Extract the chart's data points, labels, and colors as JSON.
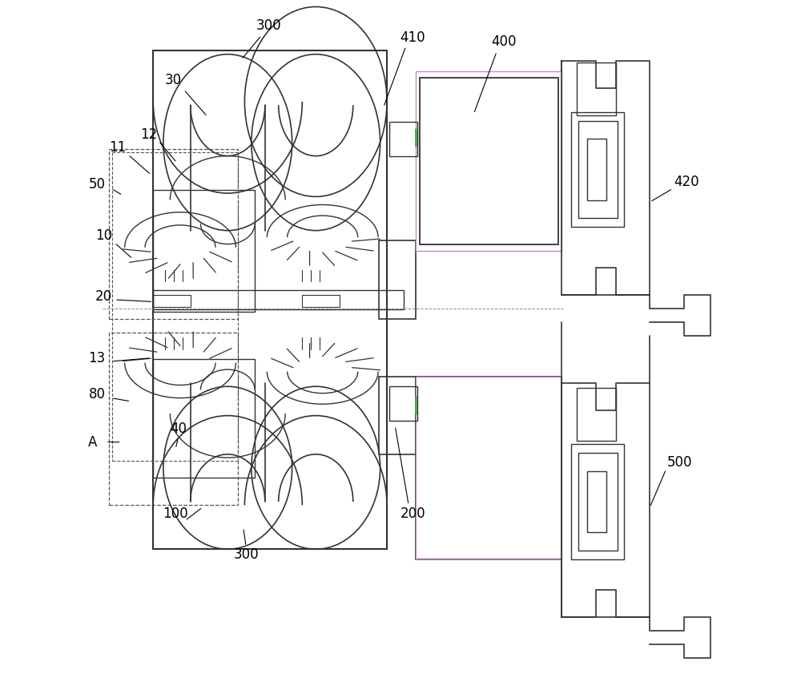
{
  "bg_color": "#ffffff",
  "line_color": "#333333",
  "dashed_color": "#555555",
  "violet_color": "#cc88cc",
  "green_color": "#44aa44",
  "fig_width": 10.0,
  "fig_height": 8.46
}
